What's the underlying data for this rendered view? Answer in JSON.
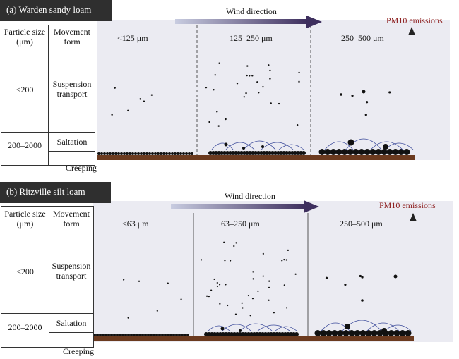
{
  "panels": [
    {
      "header": "(a) Warden sandy loam",
      "table": {
        "col1_header": "Particle size (μm)",
        "col2_header": "Movement form",
        "rows": [
          {
            "size": "<200",
            "form": "Suspension transport"
          },
          {
            "size": "200–2000",
            "form": "Saltation"
          }
        ],
        "creeping": "Creeping"
      },
      "wind_direction": "Wind direction",
      "pm10": "PM10 emissions",
      "size_classes": [
        "<125 μm",
        "125–250 μm",
        "250–500 μm"
      ]
    },
    {
      "header": "(b) Ritzville silt loam",
      "table": {
        "col1_header": "Particle size (μm)",
        "col2_header": "Movement form",
        "rows": [
          {
            "size": "<200",
            "form": "Suspension transport"
          },
          {
            "size": "200–2000",
            "form": "Saltation"
          }
        ],
        "creeping": "Creeping"
      },
      "wind_direction": "Wind direction",
      "pm10": "PM10 emissions",
      "size_classes": [
        "<63 μm",
        "63–250 μm",
        "250–500 μm"
      ]
    }
  ],
  "colors": {
    "header_bg": "#2f2f2f",
    "field_bg": "#ebebf2",
    "soil": "#6b3a1f",
    "arrow": "#4a3a6a",
    "pm10_text": "#8b1a1a",
    "trajectory": "#3b4a9a"
  }
}
